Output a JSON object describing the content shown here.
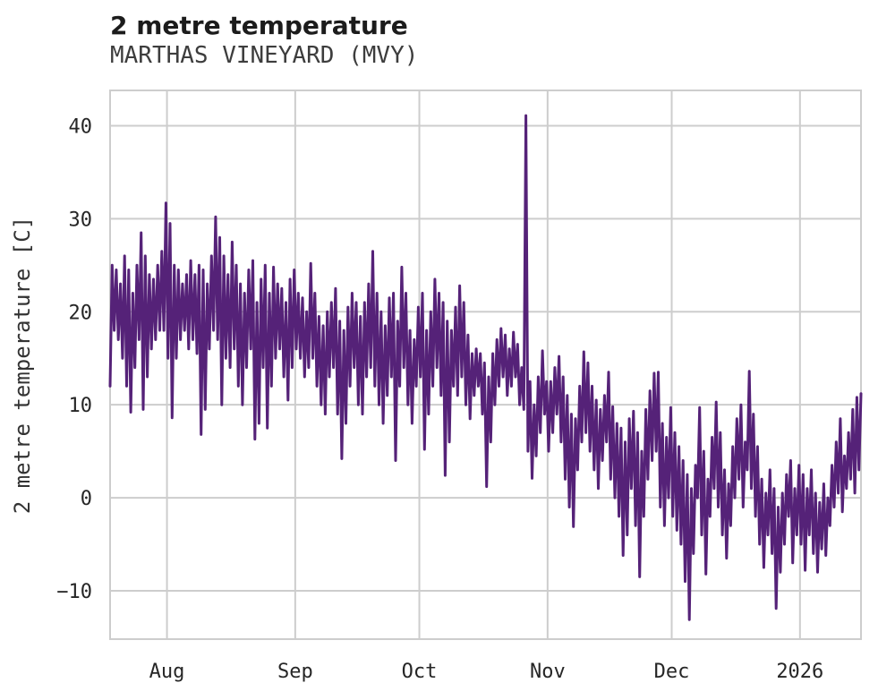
{
  "header": {
    "title": "2 metre temperature",
    "subtitle": "MARTHAS VINEYARD (MVY)"
  },
  "chart_data": {
    "type": "line",
    "title": "2 metre temperature",
    "subtitle": "MARTHAS VINEYARD (MVY)",
    "xlabel": "",
    "ylabel": "2 metre temperature [C]",
    "y_ticks": [
      40,
      30,
      20,
      10,
      0,
      -10
    ],
    "ylim": [
      -15.2,
      43.8
    ],
    "x_tick_labels": [
      "Aug",
      "Sep",
      "Oct",
      "Nov",
      "Dec",
      "2026"
    ],
    "x_start_date": "2025-07-18",
    "x_end_date": "2026-01-15",
    "month_tick_day_offsets": [
      14,
      45,
      75,
      106,
      136,
      167
    ],
    "sample_interval_days": 0.5,
    "grid": true,
    "legend": "none",
    "line_color": "#552278",
    "grid_color": "#cdcdcd",
    "series_name": "2 metre temperature [C]",
    "daily_min_max": [
      [
        12,
        25
      ],
      [
        18,
        24.5
      ],
      [
        17,
        23
      ],
      [
        15,
        26
      ],
      [
        12,
        24.5
      ],
      [
        9.2,
        22
      ],
      [
        14,
        25
      ],
      [
        17,
        28.5
      ],
      [
        9.5,
        26
      ],
      [
        13,
        24
      ],
      [
        16,
        23.5
      ],
      [
        17,
        25
      ],
      [
        18,
        26.5
      ],
      [
        18,
        31.7
      ],
      [
        15,
        29.5
      ],
      [
        8.6,
        25
      ],
      [
        15,
        24.5
      ],
      [
        17,
        23
      ],
      [
        18,
        24
      ],
      [
        16,
        25.5
      ],
      [
        17,
        24
      ],
      [
        15.5,
        25
      ],
      [
        6.8,
        24.5
      ],
      [
        9.5,
        23
      ],
      [
        16,
        26
      ],
      [
        18,
        30.2
      ],
      [
        17,
        28
      ],
      [
        10,
        26
      ],
      [
        15,
        24
      ],
      [
        14,
        27.5
      ],
      [
        16,
        25
      ],
      [
        12,
        23
      ],
      [
        10,
        22
      ],
      [
        14,
        24.5
      ],
      [
        16,
        25.5
      ],
      [
        6.3,
        21
      ],
      [
        8,
        23.5
      ],
      [
        14,
        25
      ],
      [
        7.5,
        22
      ],
      [
        12,
        24.8
      ],
      [
        15,
        23
      ],
      [
        16,
        22.5
      ],
      [
        13,
        21
      ],
      [
        10.5,
        23.5
      ],
      [
        14,
        24.5
      ],
      [
        16,
        22
      ],
      [
        15,
        21.5
      ],
      [
        13,
        20
      ],
      [
        14,
        25.2
      ],
      [
        15,
        22
      ],
      [
        12,
        19.5
      ],
      [
        10,
        18.5
      ],
      [
        9,
        20
      ],
      [
        13,
        21
      ],
      [
        14,
        22.5
      ],
      [
        9,
        19
      ],
      [
        4.2,
        18
      ],
      [
        8,
        20.5
      ],
      [
        12,
        22
      ],
      [
        14,
        21
      ],
      [
        10,
        19.5
      ],
      [
        9,
        21
      ],
      [
        13,
        23
      ],
      [
        14,
        26.5
      ],
      [
        12,
        22
      ],
      [
        10,
        20
      ],
      [
        8,
        18.5
      ],
      [
        11,
        21.5
      ],
      [
        13,
        22
      ],
      [
        4,
        19
      ],
      [
        12,
        24.8
      ],
      [
        14,
        22
      ],
      [
        10,
        18
      ],
      [
        8,
        17
      ],
      [
        12,
        20.5
      ],
      [
        13,
        22
      ],
      [
        5.2,
        18
      ],
      [
        9,
        20
      ],
      [
        12,
        23.5
      ],
      [
        14,
        22
      ],
      [
        11,
        21
      ],
      [
        2.4,
        19
      ],
      [
        6,
        18
      ],
      [
        12,
        20.5
      ],
      [
        11,
        22.8
      ],
      [
        13,
        21
      ],
      [
        10,
        17.5
      ],
      [
        8.5,
        15.5
      ],
      [
        11,
        16
      ],
      [
        12,
        15.5
      ],
      [
        9,
        14.5
      ],
      [
        1.2,
        13
      ],
      [
        6,
        15.5
      ],
      [
        10,
        17
      ],
      [
        12,
        18.2
      ],
      [
        13,
        17.5
      ],
      [
        11,
        16
      ],
      [
        12,
        17.8
      ],
      [
        13,
        16.5
      ],
      [
        10,
        14
      ],
      [
        9.5,
        41.1
      ],
      [
        5,
        12.5
      ],
      [
        2.1,
        10
      ],
      [
        4.5,
        13
      ],
      [
        7,
        15.8
      ],
      [
        9,
        12.5
      ],
      [
        5,
        12.5
      ],
      [
        7,
        14
      ],
      [
        9,
        15.2
      ],
      [
        6,
        13
      ],
      [
        2,
        11
      ],
      [
        -1,
        9
      ],
      [
        -3.1,
        8.5
      ],
      [
        3,
        12
      ],
      [
        6,
        15.7
      ],
      [
        7,
        14.5
      ],
      [
        5,
        12
      ],
      [
        3,
        10.5
      ],
      [
        1,
        9.5
      ],
      [
        4,
        11
      ],
      [
        6,
        13.5
      ],
      [
        2,
        9.8
      ],
      [
        0,
        8
      ],
      [
        -2,
        7.5
      ],
      [
        -6.2,
        6
      ],
      [
        -4,
        8.5
      ],
      [
        1,
        9.3
      ],
      [
        -3,
        7
      ],
      [
        -8.5,
        5
      ],
      [
        -2,
        9.5
      ],
      [
        2,
        11.5
      ],
      [
        4,
        13.4
      ],
      [
        5,
        13.5
      ],
      [
        -1,
        8
      ],
      [
        -3,
        6.5
      ],
      [
        0,
        9.7
      ],
      [
        -2,
        7
      ],
      [
        -3.5,
        5.5
      ],
      [
        -5,
        4
      ],
      [
        -9,
        2.5
      ],
      [
        -13.1,
        1
      ],
      [
        -6,
        3.5
      ],
      [
        0,
        9.7
      ],
      [
        -4,
        5
      ],
      [
        -8.2,
        2
      ],
      [
        -2,
        6.5
      ],
      [
        1,
        10.3
      ],
      [
        -1,
        7
      ],
      [
        -4,
        3
      ],
      [
        -6.5,
        1.5
      ],
      [
        -3,
        5.5
      ],
      [
        0,
        8.5
      ],
      [
        2,
        10
      ],
      [
        -1,
        6
      ],
      [
        3,
        13.6
      ],
      [
        1,
        9
      ],
      [
        -2,
        5.5
      ],
      [
        -5,
        2
      ],
      [
        -7.5,
        0.5
      ],
      [
        -4,
        3
      ],
      [
        -6,
        1
      ],
      [
        -11.9,
        -1
      ],
      [
        -8,
        0.5
      ],
      [
        -5,
        2.5
      ],
      [
        -2,
        4
      ],
      [
        -7,
        1
      ],
      [
        -4,
        3.5
      ],
      [
        -5,
        2.5
      ],
      [
        -7.8,
        1
      ],
      [
        -4,
        3
      ],
      [
        -6,
        0.5
      ],
      [
        -8,
        -0.5
      ],
      [
        -5.5,
        1.5
      ],
      [
        -6.2,
        0
      ],
      [
        -3,
        3.5
      ],
      [
        -1,
        6
      ],
      [
        0.5,
        8.5
      ],
      [
        -1.5,
        4.5
      ],
      [
        1,
        7
      ],
      [
        2,
        9.5
      ],
      [
        0.5,
        10.8
      ],
      [
        3,
        11.2
      ]
    ]
  }
}
